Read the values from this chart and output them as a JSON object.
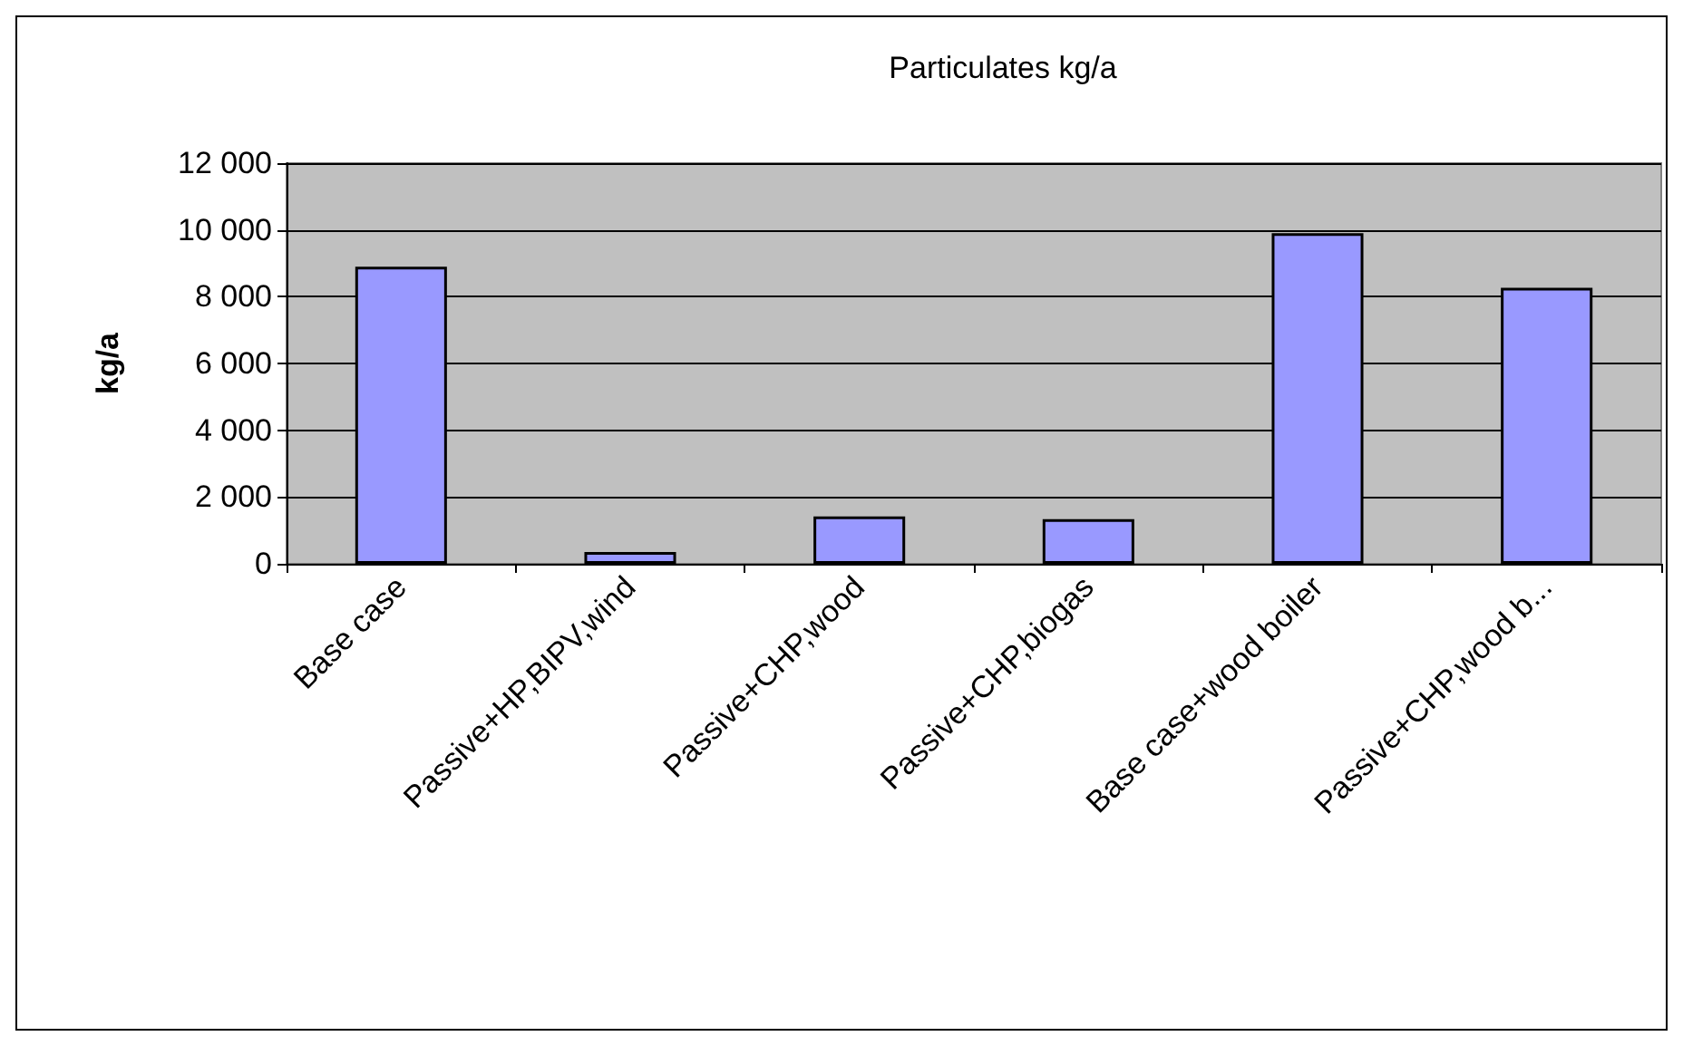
{
  "chart_data": {
    "type": "bar",
    "title": "Particulates kg/a",
    "ylabel": "kg/a",
    "categories": [
      "Base case",
      "Passive+HP,BIPV,wind",
      "Passive+CHP,wood",
      "Passive+CHP,biogas",
      "Base case+wood boiler",
      "Passive+CHP,wood b..."
    ],
    "values": [
      8900,
      350,
      1420,
      1340,
      9900,
      8270
    ],
    "color": "#9999ff",
    "ylim": [
      0,
      12000
    ],
    "yticks": [
      {
        "value": 0,
        "label": "0"
      },
      {
        "value": 2000,
        "label": "2 000"
      },
      {
        "value": 4000,
        "label": "4 000"
      },
      {
        "value": 6000,
        "label": "6 000"
      },
      {
        "value": 8000,
        "label": "8 000"
      },
      {
        "value": 10000,
        "label": "10 000"
      },
      {
        "value": 12000,
        "label": "12 000"
      }
    ],
    "grid": true
  }
}
